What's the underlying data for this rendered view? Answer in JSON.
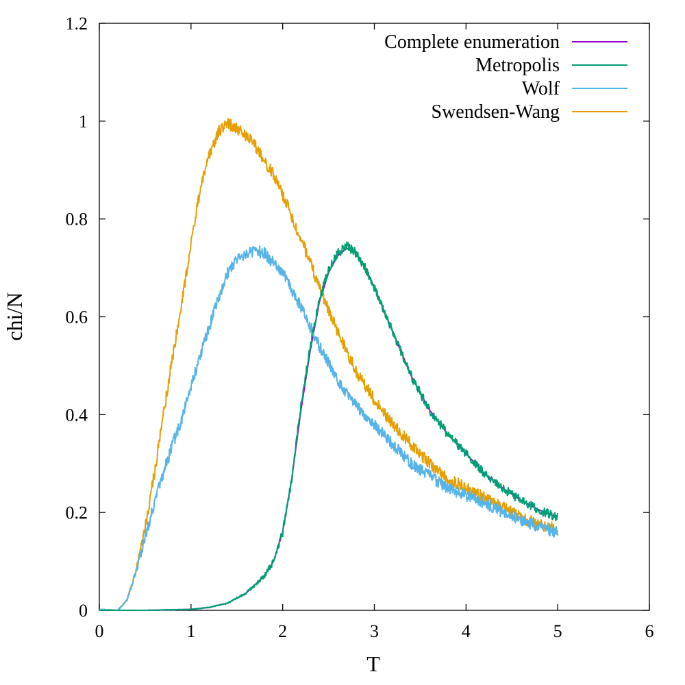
{
  "chart_data": {
    "type": "line",
    "xlabel": "T",
    "ylabel": "chi/N",
    "xlim": [
      0,
      6
    ],
    "ylim": [
      0,
      1.2
    ],
    "x_ticks": [
      "0",
      "1",
      "2",
      "3",
      "4",
      "5",
      "6"
    ],
    "y_ticks": [
      "0",
      "0.2",
      "0.4",
      "0.6",
      "0.8",
      "1",
      "1.2"
    ],
    "grid": false,
    "legend_position": "top-right",
    "series": [
      {
        "name": "Complete enumeration",
        "color": "#9400d3",
        "noise": 0,
        "x": [
          0,
          0.5,
          1.0,
          1.2,
          1.4,
          1.6,
          1.8,
          1.9,
          2.0,
          2.1,
          2.2,
          2.3,
          2.4,
          2.5,
          2.6,
          2.7,
          2.8,
          2.9,
          3.0,
          3.2,
          3.4,
          3.6,
          3.8,
          4.0,
          4.2,
          4.4,
          4.6,
          4.8,
          5.0
        ],
        "y": [
          0,
          0,
          0.002,
          0.006,
          0.015,
          0.035,
          0.07,
          0.1,
          0.16,
          0.27,
          0.41,
          0.53,
          0.63,
          0.69,
          0.725,
          0.74,
          0.73,
          0.7,
          0.66,
          0.57,
          0.48,
          0.41,
          0.36,
          0.32,
          0.28,
          0.25,
          0.225,
          0.205,
          0.19
        ]
      },
      {
        "name": "Metropolis",
        "color": "#009e73",
        "noise": 0.009,
        "x": [
          0,
          0.5,
          1.0,
          1.2,
          1.4,
          1.6,
          1.8,
          1.9,
          2.0,
          2.1,
          2.2,
          2.3,
          2.4,
          2.5,
          2.6,
          2.7,
          2.8,
          2.9,
          3.0,
          3.2,
          3.4,
          3.6,
          3.8,
          4.0,
          4.2,
          4.4,
          4.6,
          4.8,
          5.0
        ],
        "y": [
          0,
          0,
          0.002,
          0.006,
          0.015,
          0.035,
          0.07,
          0.1,
          0.16,
          0.27,
          0.42,
          0.54,
          0.635,
          0.695,
          0.73,
          0.745,
          0.73,
          0.7,
          0.66,
          0.57,
          0.48,
          0.41,
          0.36,
          0.32,
          0.28,
          0.25,
          0.225,
          0.205,
          0.19
        ]
      },
      {
        "name": "Wolf",
        "color": "#56b4e9",
        "noise": 0.012,
        "x": [
          0,
          0.2,
          0.3,
          0.4,
          0.5,
          0.6,
          0.7,
          0.8,
          0.9,
          1.0,
          1.1,
          1.2,
          1.3,
          1.4,
          1.5,
          1.6,
          1.7,
          1.8,
          1.9,
          2.0,
          2.2,
          2.4,
          2.6,
          2.8,
          3.0,
          3.2,
          3.4,
          3.6,
          3.8,
          4.0,
          4.2,
          4.4,
          4.6,
          4.8,
          5.0
        ],
        "y": [
          0.002,
          0.0,
          0.02,
          0.08,
          0.15,
          0.22,
          0.28,
          0.34,
          0.39,
          0.46,
          0.52,
          0.58,
          0.64,
          0.69,
          0.72,
          0.73,
          0.735,
          0.73,
          0.71,
          0.69,
          0.62,
          0.54,
          0.47,
          0.42,
          0.38,
          0.34,
          0.3,
          0.275,
          0.25,
          0.235,
          0.22,
          0.2,
          0.185,
          0.17,
          0.16
        ]
      },
      {
        "name": "Swendsen-Wang",
        "color": "#e69f00",
        "noise": 0.012,
        "x": [
          0,
          0.2,
          0.3,
          0.4,
          0.5,
          0.6,
          0.7,
          0.8,
          0.9,
          1.0,
          1.1,
          1.2,
          1.3,
          1.4,
          1.5,
          1.6,
          1.7,
          1.8,
          1.9,
          2.0,
          2.2,
          2.4,
          2.6,
          2.8,
          3.0,
          3.2,
          3.4,
          3.6,
          3.8,
          4.0,
          4.2,
          4.4,
          4.6,
          4.8,
          5.0
        ],
        "y": [
          0.002,
          0.0,
          0.02,
          0.08,
          0.17,
          0.28,
          0.4,
          0.52,
          0.63,
          0.75,
          0.86,
          0.93,
          0.98,
          0.995,
          0.985,
          0.97,
          0.95,
          0.92,
          0.89,
          0.85,
          0.76,
          0.66,
          0.57,
          0.49,
          0.43,
          0.38,
          0.34,
          0.3,
          0.27,
          0.25,
          0.23,
          0.21,
          0.19,
          0.175,
          0.165
        ]
      }
    ]
  }
}
